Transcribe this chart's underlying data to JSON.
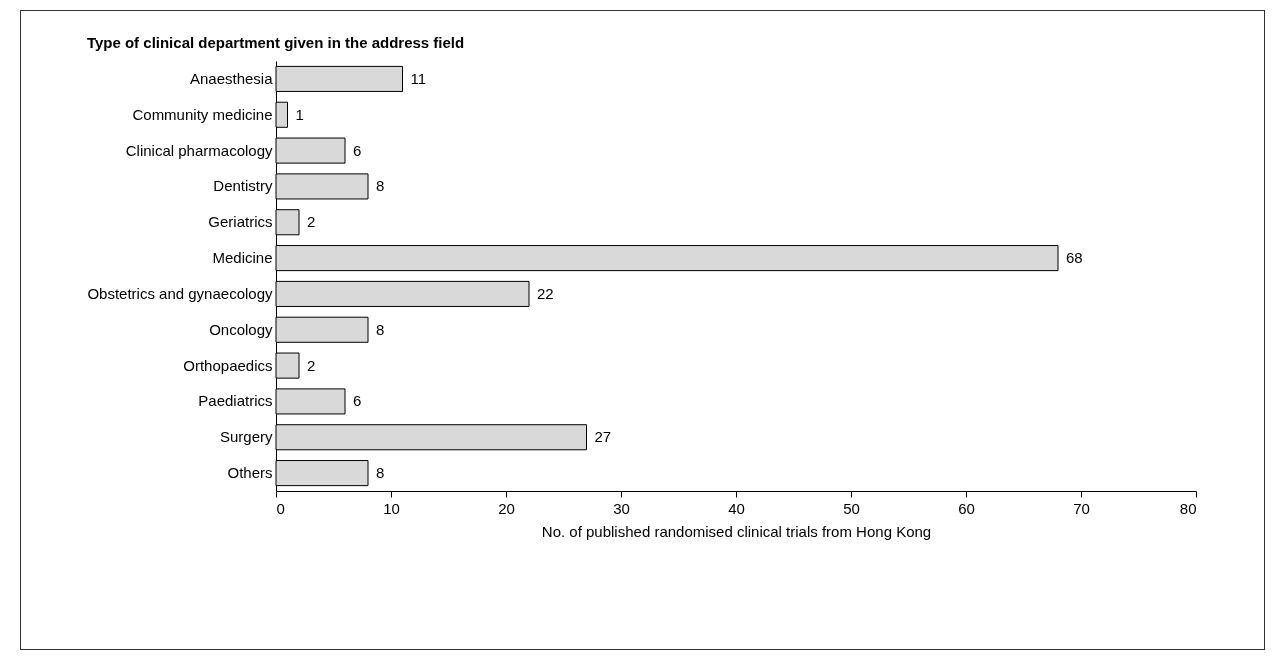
{
  "chart_data": {
    "type": "bar",
    "orientation": "horizontal",
    "title": "Type of clinical department given in the address field",
    "xlabel": "No. of published randomised clinical trials from Hong Kong",
    "categories": [
      "Anaesthesia",
      "Community medicine",
      "Clinical pharmacology",
      "Dentistry",
      "Geriatrics",
      "Medicine",
      "Obstetrics and gynaecology",
      "Oncology",
      "Orthopaedics",
      "Paediatrics",
      "Surgery",
      "Others"
    ],
    "values": [
      11,
      1,
      6,
      8,
      2,
      68,
      22,
      8,
      2,
      6,
      27,
      8
    ],
    "color": "#d9d9d9",
    "xlim": [
      0,
      80
    ],
    "xticks": [
      0,
      10,
      20,
      30,
      40,
      50,
      60,
      70,
      80
    ],
    "data_labels": true
  }
}
